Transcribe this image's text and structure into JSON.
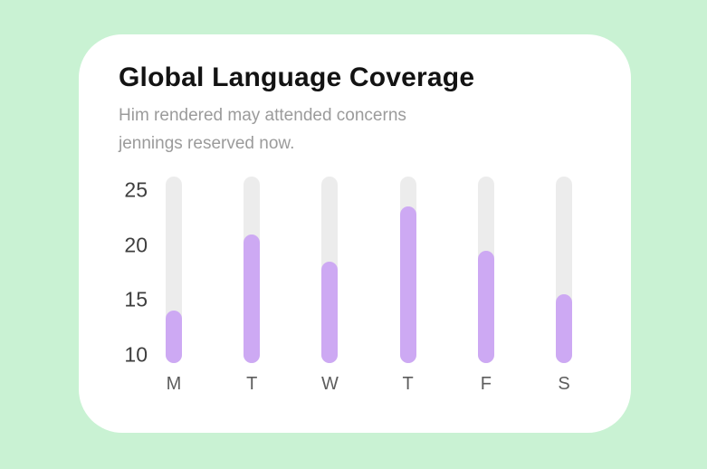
{
  "page": {
    "background_color": "#c9f2d3",
    "card_color": "#ffffff"
  },
  "card": {
    "title": "Global Language Coverage",
    "subtitle_lines": [
      "Him rendered may attended concerns",
      "jennings reserved now."
    ]
  },
  "chart_data": {
    "type": "bar",
    "title": "Global Language Coverage",
    "categories": [
      "M",
      "T",
      "W",
      "T",
      "F",
      "S"
    ],
    "values": [
      14,
      21,
      18.5,
      23.5,
      19.5,
      15.5
    ],
    "y_ticks": [
      25,
      20,
      15,
      10
    ],
    "ylim": [
      10,
      26
    ],
    "xlabel": "",
    "ylabel": "",
    "grid": false,
    "legend": false,
    "bar_color": "#cda9f3",
    "track_color": "#ececec",
    "bar_style": "rounded-pill-on-track"
  }
}
